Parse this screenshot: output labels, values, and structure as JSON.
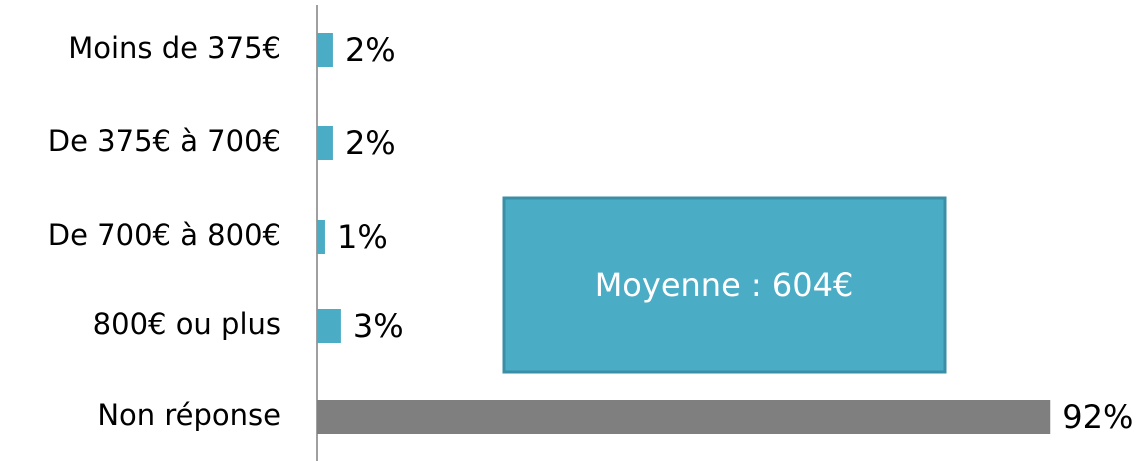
{
  "chart_data": {
    "type": "bar",
    "orientation": "horizontal",
    "categories": [
      "Moins de 375€",
      "De 375€ à 700€",
      "De 700€ à 800€",
      "800€ ou plus",
      "Non réponse"
    ],
    "values": [
      2,
      2,
      1,
      3,
      92
    ],
    "value_labels": [
      "2%",
      "2%",
      "1%",
      "3%",
      "92%"
    ],
    "colors": [
      "#4bacc6",
      "#4bacc6",
      "#4bacc6",
      "#4bacc6",
      "#7f7f7f"
    ],
    "xlim": [
      0,
      100
    ],
    "annotation": "Moyenne : 604€"
  }
}
